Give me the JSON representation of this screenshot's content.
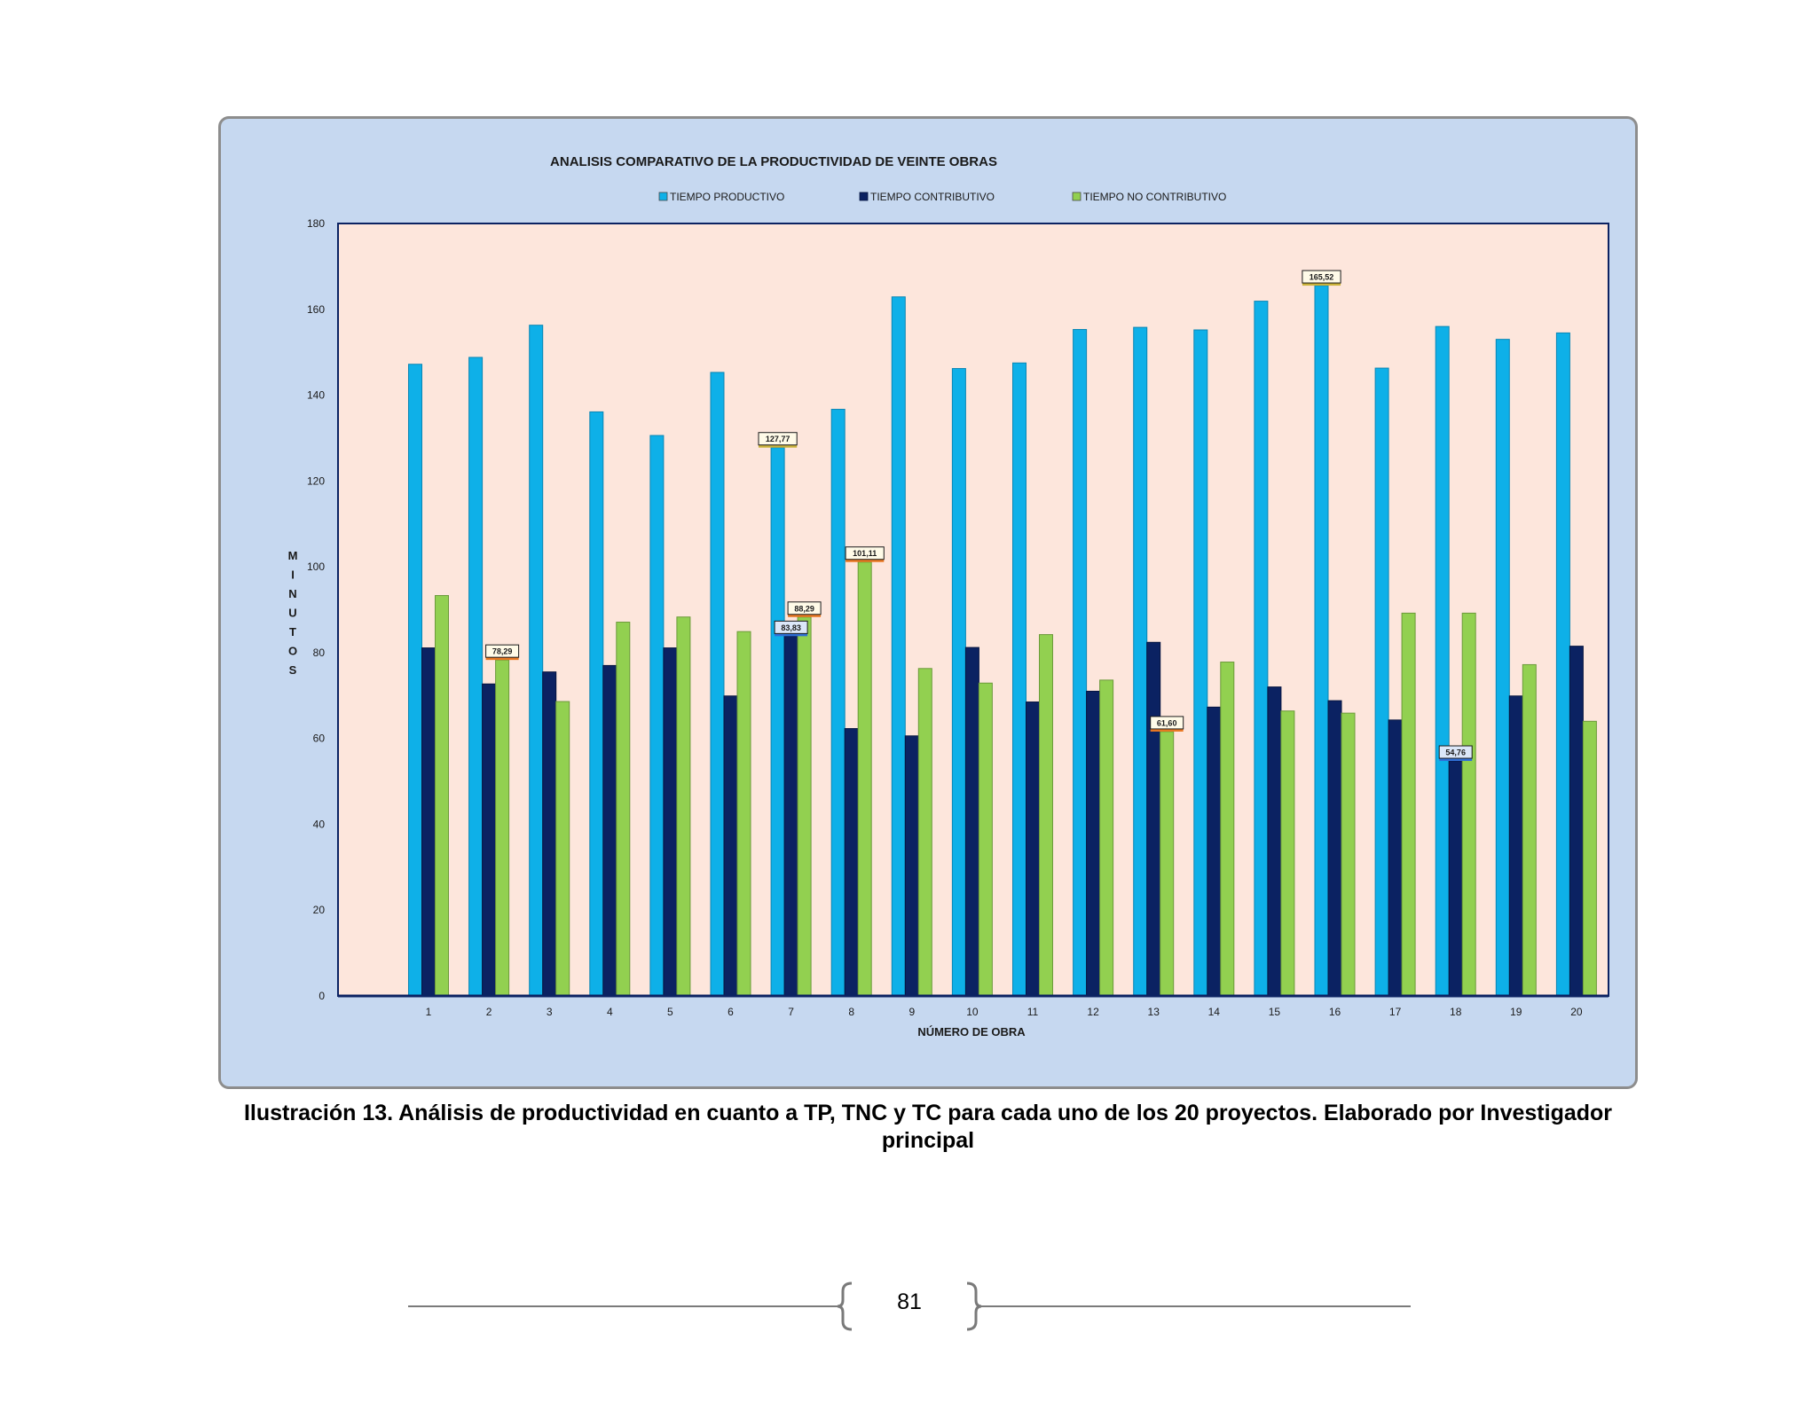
{
  "chart_data": {
    "type": "bar",
    "title": "ANALISIS COMPARATIVO DE LA PRODUCTIVIDAD DE  VEINTE OBRAS",
    "xlabel": "NÚMERO DE OBRA",
    "ylabel": "MINUTOS",
    "ylabel_letters": [
      "M",
      "I",
      "N",
      "U",
      "T",
      "O",
      "S"
    ],
    "ylim": [
      0,
      180
    ],
    "yticks": [
      "0",
      "20",
      "40",
      "60",
      "80",
      "100",
      "120",
      "140",
      "160",
      "180"
    ],
    "legend_position": "top",
    "categories": [
      "1",
      "2",
      "3",
      "4",
      "5",
      "6",
      "7",
      "8",
      "9",
      "10",
      "11",
      "12",
      "13",
      "14",
      "15",
      "16",
      "17",
      "18",
      "19",
      "20"
    ],
    "series": [
      {
        "name": "TIEMPO PRODUCTIVO",
        "color": "#0eb0e8",
        "values": [
          147.2,
          148.8,
          156.3,
          136.1,
          130.6,
          145.3,
          127.77,
          136.7,
          162.9,
          146.2,
          147.5,
          155.3,
          155.8,
          155.2,
          161.9,
          165.52,
          146.3,
          156.0,
          153.0,
          154.5
        ]
      },
      {
        "name": "TIEMPO CONTRIBUTIVO",
        "color": "#0b2262",
        "values": [
          81.1,
          72.7,
          75.5,
          77.0,
          81.1,
          69.9,
          83.83,
          62.3,
          60.6,
          81.2,
          68.5,
          71.0,
          82.4,
          67.3,
          72.0,
          68.8,
          64.3,
          54.76,
          69.9,
          81.5
        ]
      },
      {
        "name": "TIEMPO NO CONTRIBUTIVO",
        "color": "#92d050",
        "values": [
          93.3,
          78.29,
          68.6,
          87.1,
          88.3,
          84.9,
          88.29,
          101.11,
          76.3,
          72.9,
          84.2,
          73.6,
          61.6,
          77.8,
          66.4,
          65.9,
          89.2,
          89.2,
          77.2,
          64.0
        ]
      }
    ],
    "data_labels": [
      {
        "series": 0,
        "index": 6,
        "text": "127,77"
      },
      {
        "series": 0,
        "index": 15,
        "text": "165,52"
      },
      {
        "series": 1,
        "index": 6,
        "text": "83,83"
      },
      {
        "series": 1,
        "index": 17,
        "text": "54,76"
      },
      {
        "series": 2,
        "index": 1,
        "text": "78,29"
      },
      {
        "series": 2,
        "index": 6,
        "text": "88,29"
      },
      {
        "series": 2,
        "index": 7,
        "text": "101,11"
      },
      {
        "series": 2,
        "index": 12,
        "text": "61,60"
      }
    ],
    "colors": {
      "frame_bg": "#c6d8f0",
      "plot_bg": "#fde6dc",
      "axis": "#0b2262"
    }
  },
  "caption": "Ilustración 13. Análisis de productividad en cuanto a TP, TNC y TC para cada uno de los 20 proyectos. Elaborado por Investigador principal",
  "footer": {
    "page_number": "81"
  }
}
